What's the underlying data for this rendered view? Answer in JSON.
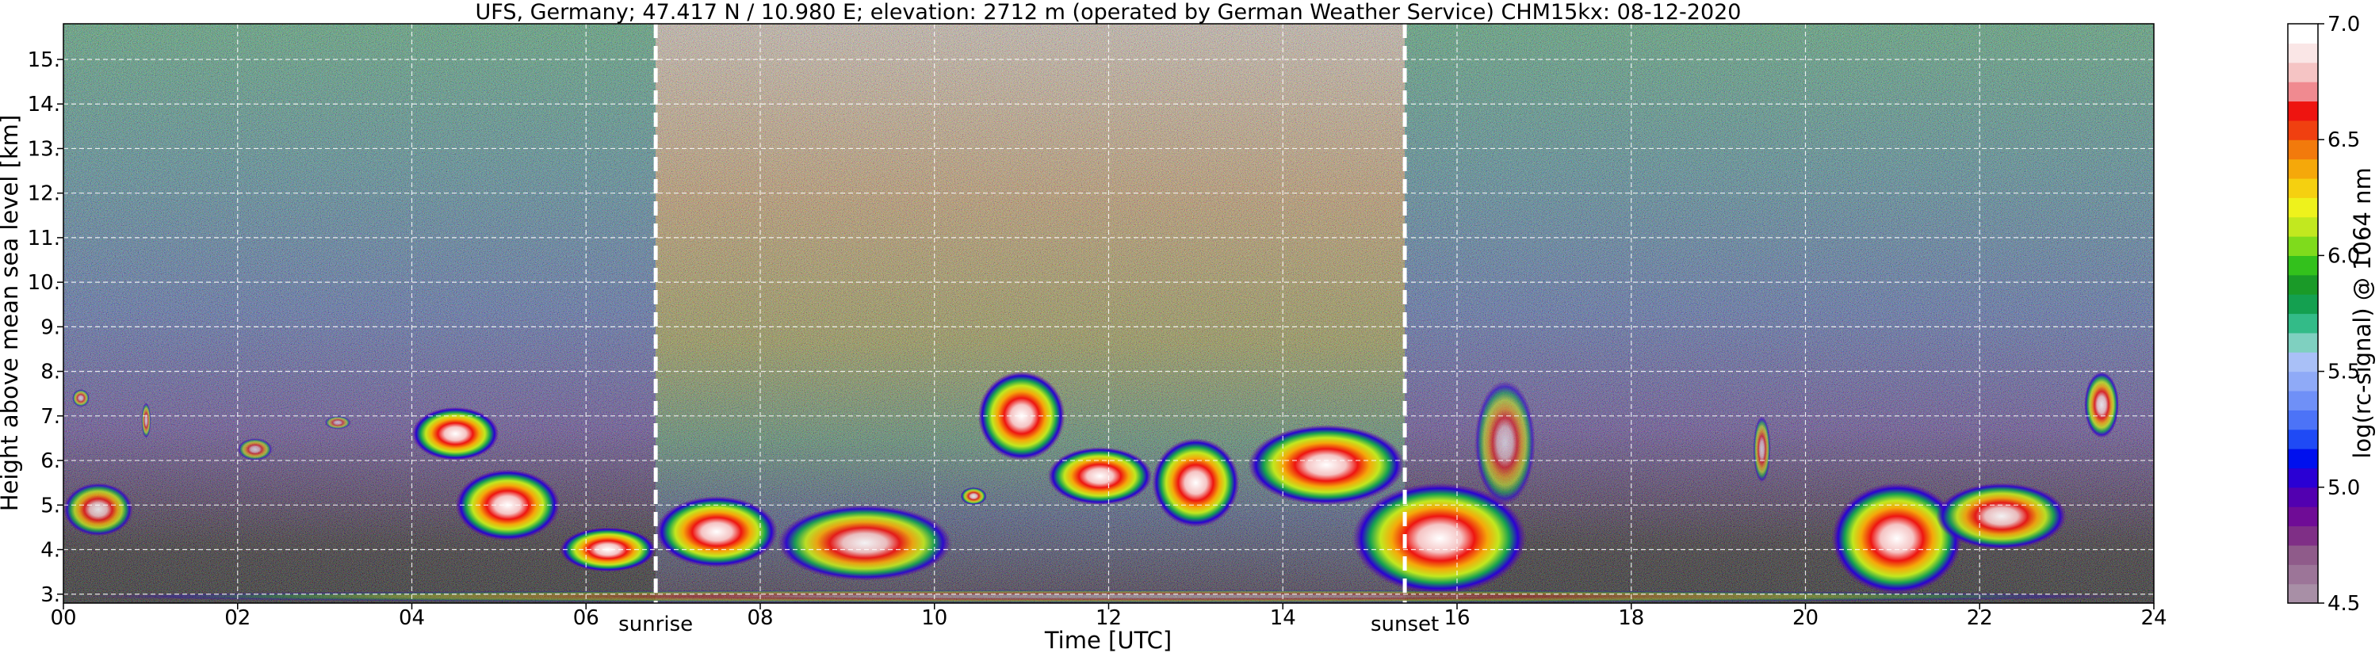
{
  "chart_data": {
    "type": "heatmap",
    "title": "UFS, Germany; 47.417 N / 10.980 E; elevation: 2712 m  (operated by German Weather Service)    CHM15kx: 08-12-2020",
    "xlabel": "Time [UTC]",
    "ylabel": "Height above mean sea level [km]",
    "xlim": [
      0,
      24
    ],
    "ylim": [
      2.8,
      15.8
    ],
    "x_ticks": [
      0,
      2,
      4,
      6,
      8,
      10,
      12,
      14,
      16,
      18,
      20,
      22,
      24
    ],
    "x_tick_labels": [
      "00",
      "02",
      "04",
      "06",
      "08",
      "10",
      "12",
      "14",
      "16",
      "18",
      "20",
      "22",
      "24"
    ],
    "y_ticks": [
      3,
      4,
      5,
      6,
      7,
      8,
      9,
      10,
      11,
      12,
      13,
      14,
      15
    ],
    "y_tick_labels": [
      "3.",
      "4.",
      "5.",
      "6.",
      "7.",
      "8.",
      "9.",
      "10.",
      "11.",
      "12.",
      "13.",
      "14.",
      "15."
    ],
    "grid": true,
    "markers": [
      {
        "label": "sunrise",
        "x": 6.8
      },
      {
        "label": "sunset",
        "x": 15.4
      }
    ],
    "colorbar": {
      "label": "log(rc-signal) @ 1064 nm",
      "range": [
        4.5,
        7.0
      ],
      "ticks": [
        4.5,
        5.0,
        5.5,
        6.0,
        6.5,
        7.0
      ],
      "tick_labels": [
        "4.5",
        "5.0",
        "5.5",
        "6.0",
        "6.5",
        "7.0"
      ],
      "colors": [
        "#a88fa6",
        "#9c7598",
        "#8f5b8a",
        "#7f2f86",
        "#6f0c96",
        "#5200b0",
        "#2a00d4",
        "#0010ee",
        "#1f4af5",
        "#4c73f7",
        "#6f90f7",
        "#8faaf7",
        "#a9c0f7",
        "#7fd0c0",
        "#33bb88",
        "#14a050",
        "#1a9a28",
        "#33c11c",
        "#7fdb1c",
        "#c2e81f",
        "#eef21c",
        "#f5d010",
        "#f5a80a",
        "#f27a0c",
        "#f04010",
        "#ee1410",
        "#f08a90",
        "#f5c4c4",
        "#fae6e6",
        "#ffffff"
      ]
    },
    "background_layers": [
      {
        "kind": "night-noise",
        "x": [
          0,
          6.8
        ],
        "base_color": "#4a3e8c"
      },
      {
        "kind": "day-noise",
        "x": [
          6.8,
          15.4
        ],
        "base_color": "#9c7a5c"
      },
      {
        "kind": "night-noise",
        "x": [
          15.4,
          24
        ],
        "base_color": "#4a3e8c"
      }
    ],
    "cloud_layers": [
      {
        "x": [
          0.0,
          0.8
        ],
        "y": [
          4.3,
          5.5
        ],
        "peak": 6.5
      },
      {
        "x": [
          0.1,
          0.3
        ],
        "y": [
          7.2,
          7.6
        ],
        "peak": 6.0
      },
      {
        "x": [
          0.9,
          1.0
        ],
        "y": [
          6.5,
          7.3
        ],
        "peak": 6.0
      },
      {
        "x": [
          2.0,
          2.4
        ],
        "y": [
          6.0,
          6.5
        ],
        "peak": 6.0
      },
      {
        "x": [
          3.0,
          3.3
        ],
        "y": [
          6.7,
          7.0
        ],
        "peak": 5.8
      },
      {
        "x": [
          4.0,
          5.0
        ],
        "y": [
          6.0,
          7.2
        ],
        "peak": 7.0
      },
      {
        "x": [
          4.5,
          5.7
        ],
        "y": [
          4.2,
          5.8
        ],
        "peak": 7.0
      },
      {
        "x": [
          5.7,
          6.8
        ],
        "y": [
          3.5,
          4.5
        ],
        "peak": 7.0
      },
      {
        "x": [
          6.8,
          8.2
        ],
        "y": [
          3.6,
          5.2
        ],
        "peak": 7.0
      },
      {
        "x": [
          8.2,
          10.2
        ],
        "y": [
          3.3,
          5.0
        ],
        "peak": 6.8
      },
      {
        "x": [
          10.3,
          10.6
        ],
        "y": [
          5.0,
          5.4
        ],
        "peak": 6.5
      },
      {
        "x": [
          10.5,
          11.5
        ],
        "y": [
          6.0,
          8.0
        ],
        "peak": 7.0
      },
      {
        "x": [
          11.3,
          12.5
        ],
        "y": [
          5.0,
          6.3
        ],
        "peak": 7.0
      },
      {
        "x": [
          12.5,
          13.5
        ],
        "y": [
          4.5,
          6.5
        ],
        "peak": 7.0
      },
      {
        "x": [
          13.6,
          15.4
        ],
        "y": [
          5.0,
          6.8
        ],
        "peak": 7.0
      },
      {
        "x": [
          14.8,
          16.8
        ],
        "y": [
          3.0,
          5.5
        ],
        "peak": 7.0
      },
      {
        "x": [
          16.2,
          16.9
        ],
        "y": [
          5.0,
          7.8
        ],
        "peak": 6.0
      },
      {
        "x": [
          19.4,
          19.6
        ],
        "y": [
          5.5,
          7.0
        ],
        "peak": 6.0
      },
      {
        "x": [
          20.3,
          21.8
        ],
        "y": [
          3.0,
          5.5
        ],
        "peak": 7.0
      },
      {
        "x": [
          21.5,
          23.0
        ],
        "y": [
          4.0,
          5.5
        ],
        "peak": 6.8
      },
      {
        "x": [
          23.2,
          23.6
        ],
        "y": [
          6.5,
          8.0
        ],
        "peak": 6.5
      },
      {
        "x": [
          0,
          24
        ],
        "y": [
          2.8,
          3.1
        ],
        "peak": 5.2
      }
    ]
  }
}
